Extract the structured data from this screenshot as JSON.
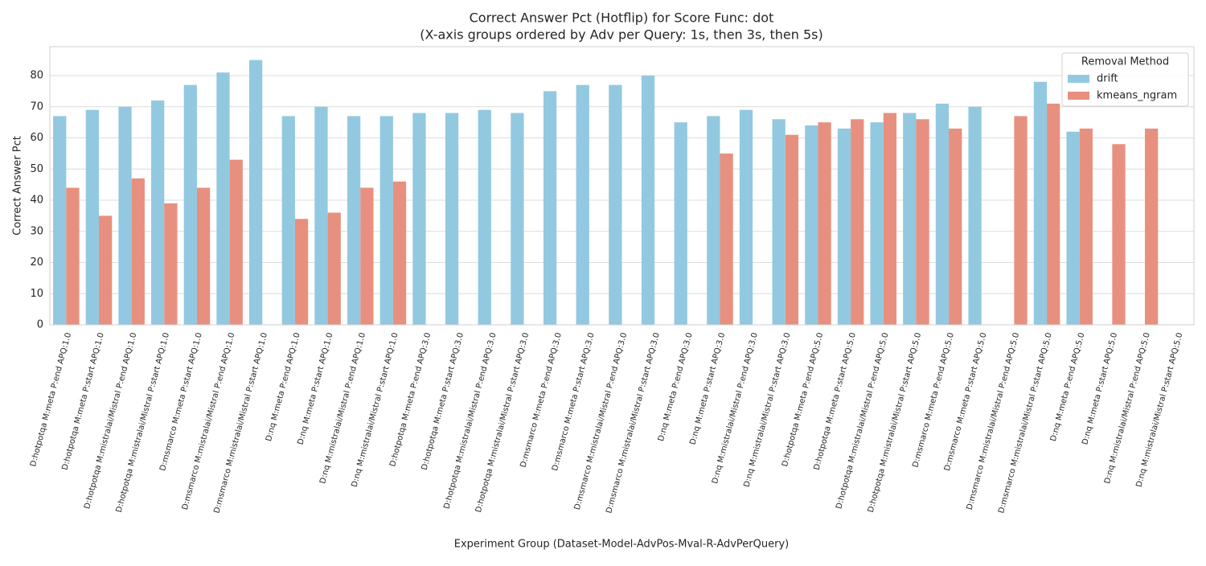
{
  "chart_data": {
    "type": "bar",
    "title": "Correct Answer Pct (Hotflip) for Score Func: dot",
    "subtitle": "(X-axis groups ordered by Adv per Query: 1s, then 3s, then 5s)",
    "x_label": "Experiment Group (Dataset-Model-AdvPos-Mval-R-AdvPerQuery)",
    "y_label": "Correct Answer Pct",
    "legend_title": "Removal Method",
    "legend_position": "upper right",
    "grid": true,
    "categories": [
      "D:hotpotqa M:meta P:end APQ:1.0",
      "D:hotpotqa M:meta P:start APQ:1.0",
      "D:hotpotqa M:mistralai/Mistral P:end APQ:1.0",
      "D:hotpotqa M:mistralai/Mistral P:start APQ:1.0",
      "D:msmarco M:meta P:start APQ:1.0",
      "D:msmarco M:mistralai/Mistral P:end APQ:1.0",
      "D:msmarco M:mistralai/Mistral P:start APQ:1.0",
      "D:nq M:meta P:end APQ:1.0",
      "D:nq M:meta P:start APQ:1.0",
      "D:nq M:mistralai/Mistral P:end APQ:1.0",
      "D:nq M:mistralai/Mistral P:start APQ:1.0",
      "D:hotpotqa M:meta P:end APQ:3.0",
      "D:hotpotqa M:meta P:start APQ:3.0",
      "D:hotpotqa M:mistralai/Mistral P:end APQ:3.0",
      "D:hotpotqa M:mistralai/Mistral P:start APQ:3.0",
      "D:msmarco M:meta P:end APQ:3.0",
      "D:msmarco M:meta P:start APQ:3.0",
      "D:msmarco M:mistralai/Mistral P:end APQ:3.0",
      "D:msmarco M:mistralai/Mistral P:start APQ:3.0",
      "D:nq M:meta P:end APQ:3.0",
      "D:nq M:meta P:start APQ:3.0",
      "D:nq M:mistralai/Mistral P:end APQ:3.0",
      "D:nq M:mistralai/Mistral P:start APQ:3.0",
      "D:hotpotqa M:meta P:end APQ:5.0",
      "D:hotpotqa M:meta P:start APQ:5.0",
      "D:hotpotqa M:mistralai/Mistral P:end APQ:5.0",
      "D:hotpotqa M:mistralai/Mistral P:start APQ:5.0",
      "D:msmarco M:meta P:end APQ:5.0",
      "D:msmarco M:meta P:start APQ:5.0",
      "D:msmarco M:mistralai/Mistral P:end APQ:5.0",
      "D:msmarco M:mistralai/Mistral P:start APQ:5.0",
      "D:nq M:meta P:end APQ:5.0",
      "D:nq M:meta P:start APQ:5.0",
      "D:nq M:mistralai/Mistral P:end APQ:5.0",
      "D:nq M:mistralai/Mistral P:start APQ:5.0"
    ],
    "series": [
      {
        "name": "drift",
        "color": "#92c9e0",
        "values": [
          67,
          69,
          70,
          72,
          77,
          81,
          85,
          67,
          70,
          67,
          67,
          68,
          68,
          69,
          68,
          75,
          77,
          77,
          80,
          65,
          67,
          69,
          66,
          64,
          63,
          65,
          68,
          71,
          70,
          null,
          78,
          62,
          null,
          null,
          null
        ]
      },
      {
        "name": "kmeans_ngram",
        "color": "#e8907f",
        "values": [
          44,
          35,
          47,
          39,
          44,
          53,
          null,
          34,
          36,
          44,
          46,
          null,
          null,
          null,
          null,
          null,
          null,
          null,
          null,
          null,
          55,
          null,
          61,
          65,
          66,
          68,
          66,
          63,
          null,
          67,
          71,
          63,
          58,
          63,
          null
        ]
      }
    ],
    "ylim": [
      0,
      89.3
    ],
    "yticks": [
      0,
      10,
      20,
      30,
      40,
      50,
      60,
      70,
      80
    ]
  }
}
